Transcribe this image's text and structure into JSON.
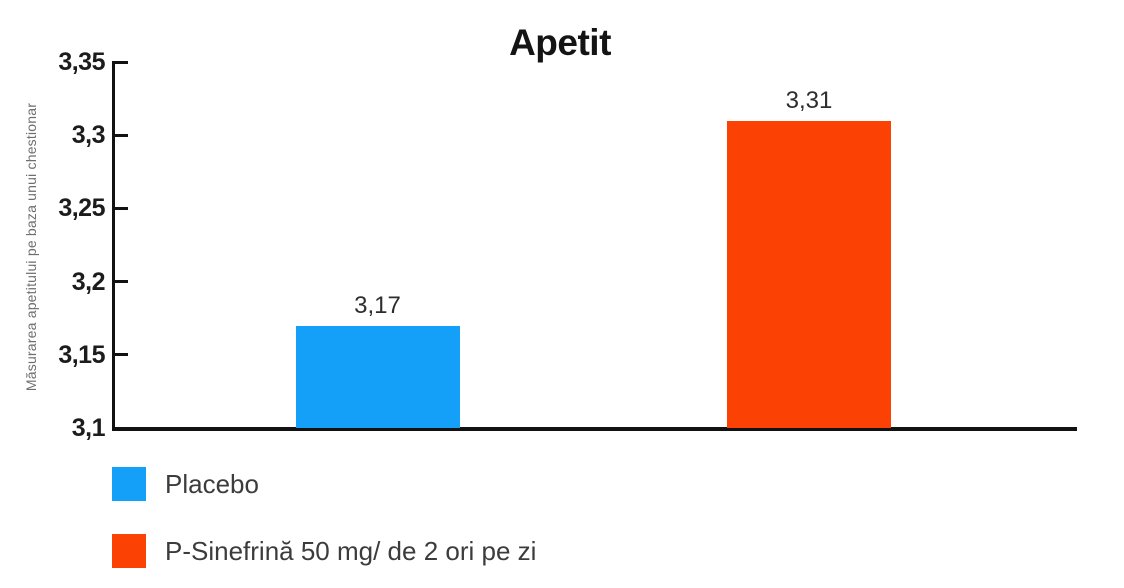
{
  "chart_data": {
    "type": "bar",
    "title": "Apetit",
    "xlabel": "",
    "ylabel": "Măsurarea apetitului pe baza unui chestionar",
    "categories": [
      "Placebo",
      "P-Sinefrină 50 mg/ de 2 ori pe zi"
    ],
    "values": [
      3.17,
      3.31
    ],
    "value_labels": [
      "3,17",
      "3,31"
    ],
    "bar_colors": [
      "#149FF9",
      "#FB4104"
    ],
    "ylim": [
      3.1,
      3.35
    ],
    "yticks": [
      {
        "value": 3.1,
        "label": "3,1"
      },
      {
        "value": 3.15,
        "label": "3,15"
      },
      {
        "value": 3.2,
        "label": "3,2"
      },
      {
        "value": 3.25,
        "label": "3,25"
      },
      {
        "value": 3.3,
        "label": "3,3"
      },
      {
        "value": 3.35,
        "label": "3,35"
      }
    ],
    "grid": false,
    "legend_position": "bottom-left",
    "axis_color": "#121212"
  },
  "legend": {
    "items": [
      {
        "label": "Placebo",
        "color": "#149FF9"
      },
      {
        "label": "P-Sinefrină 50 mg/ de 2 ori pe zi",
        "color": "#FB4104"
      }
    ]
  }
}
